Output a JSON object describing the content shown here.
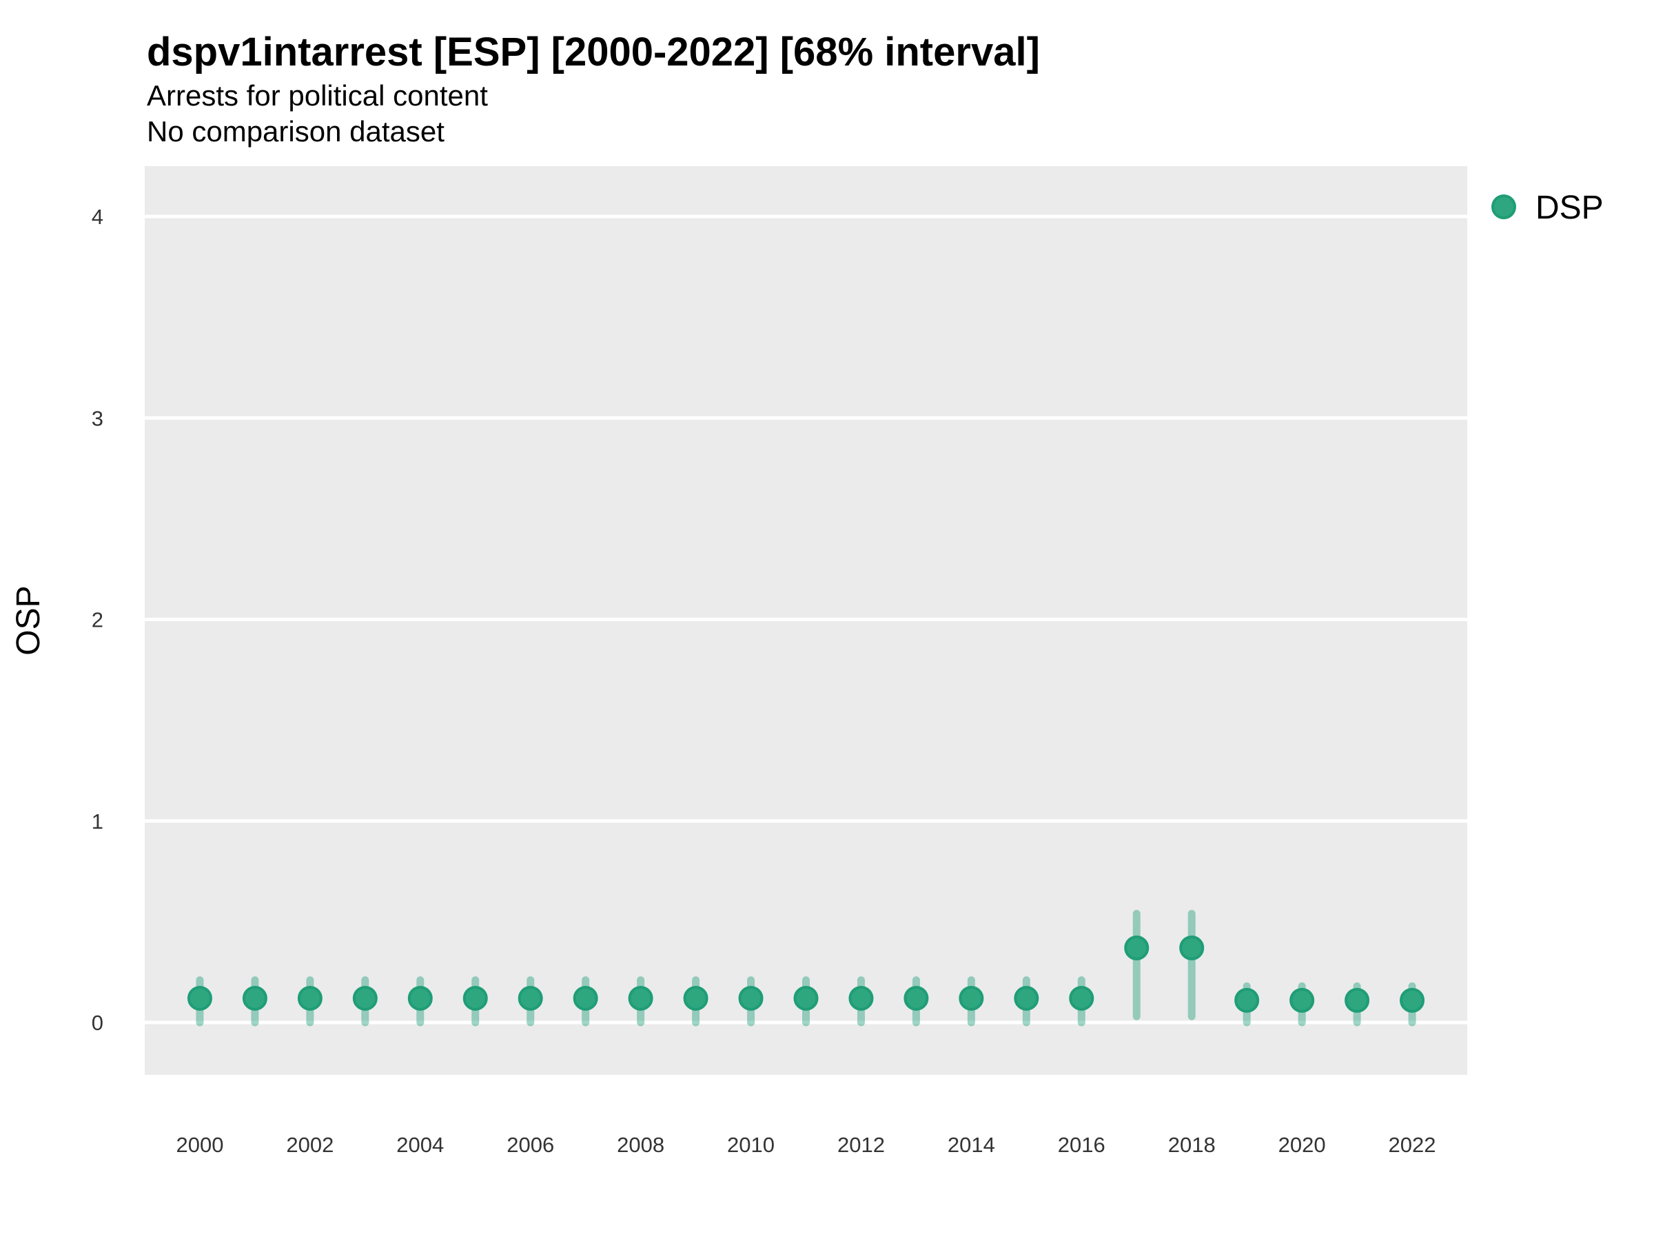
{
  "chart_data": {
    "type": "scatter",
    "title": "dspv1intarrest [ESP] [2000-2022] [68% interval]",
    "subtitle1": "Arrests for political content",
    "subtitle2": "No comparison dataset",
    "xlabel": "",
    "ylabel": "OSP",
    "xlim": [
      1999,
      2023
    ],
    "ylim": [
      -0.26,
      4.25
    ],
    "x_ticks": [
      2000,
      2002,
      2004,
      2006,
      2008,
      2010,
      2012,
      2014,
      2016,
      2018,
      2020,
      2022
    ],
    "y_ticks": [
      0,
      1,
      2,
      3,
      4
    ],
    "grid": "major-horizontal-only, white lines on gray panel, no minor gridlines",
    "legend": {
      "position": "right",
      "entries": [
        {
          "label": "DSP",
          "color": "#2EA77F"
        }
      ]
    },
    "interval_label": "68% interval",
    "series": [
      {
        "name": "DSP",
        "x": [
          2000,
          2001,
          2002,
          2003,
          2004,
          2005,
          2006,
          2007,
          2008,
          2009,
          2010,
          2011,
          2012,
          2013,
          2014,
          2015,
          2016,
          2017,
          2018,
          2019,
          2020,
          2021,
          2022
        ],
        "y": [
          0.12,
          0.12,
          0.12,
          0.12,
          0.12,
          0.12,
          0.12,
          0.12,
          0.12,
          0.12,
          0.12,
          0.12,
          0.12,
          0.12,
          0.12,
          0.12,
          0.12,
          0.37,
          0.37,
          0.11,
          0.11,
          0.11,
          0.11
        ],
        "y_lo": [
          0.0,
          0.0,
          0.0,
          0.0,
          0.0,
          0.0,
          0.0,
          0.0,
          0.0,
          0.0,
          0.0,
          0.0,
          0.0,
          0.0,
          0.0,
          0.0,
          0.0,
          0.03,
          0.03,
          0.0,
          0.0,
          0.0,
          0.0
        ],
        "y_hi": [
          0.21,
          0.21,
          0.21,
          0.21,
          0.21,
          0.21,
          0.21,
          0.21,
          0.21,
          0.21,
          0.21,
          0.21,
          0.21,
          0.21,
          0.21,
          0.21,
          0.21,
          0.54,
          0.54,
          0.18,
          0.18,
          0.18,
          0.18
        ]
      }
    ],
    "colors": {
      "point_fill": "#2EA77F",
      "point_stroke": "#1F9D76",
      "interval": "#1B9E77",
      "panel_bg": "#EBEBEB",
      "gridline": "#FFFFFF",
      "tick_text": "#333333",
      "text": "#000000"
    }
  }
}
